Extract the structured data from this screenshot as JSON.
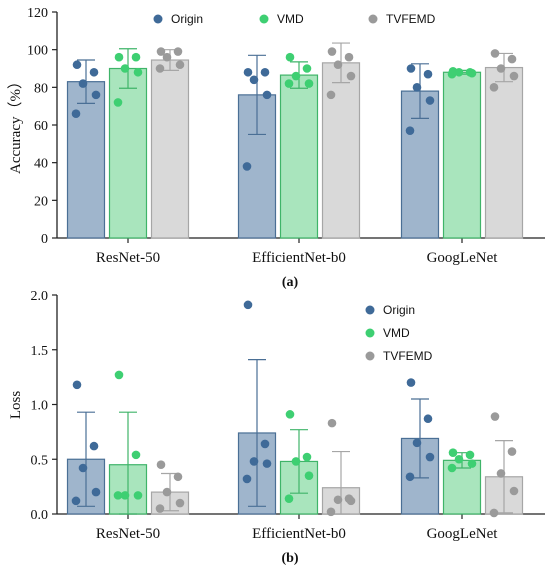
{
  "colors": {
    "Origin": {
      "fill": "#9fb5cc",
      "edge": "#4a6f95",
      "dot": "#3f6a98"
    },
    "VMD": {
      "fill": "#a9e5bd",
      "edge": "#3fb469",
      "dot": "#3ecf72"
    },
    "TVFEMD": {
      "fill": "#d9d9d9",
      "edge": "#a6a6a6",
      "dot": "#9a9a9a"
    }
  },
  "chart_data": [
    {
      "type": "bar",
      "panel_label": "(a)",
      "ylabel": "Accuracy（%）",
      "ylim": [
        0,
        120
      ],
      "yticks": [
        "0",
        "20",
        "40",
        "60",
        "80",
        "100",
        "120"
      ],
      "yticks_values": [
        0,
        20,
        40,
        60,
        80,
        100,
        120
      ],
      "categories": [
        "ResNet-50",
        "EfficientNet-b0",
        "GoogLeNet"
      ],
      "legend": {
        "placement": "top",
        "entries": [
          "Origin",
          "VMD",
          "TVFEMD"
        ]
      },
      "series": [
        {
          "name": "Origin",
          "values": [
            83,
            76,
            78
          ],
          "err": [
            11.5,
            21,
            14.5
          ],
          "points": [
            [
              92,
              88,
              82,
              76,
              66
            ],
            [
              88,
              88,
              84,
              76,
              38
            ],
            [
              90,
              87,
              80,
              73,
              57
            ]
          ]
        },
        {
          "name": "VMD",
          "values": [
            90,
            86.5,
            88
          ],
          "err": [
            10.5,
            7,
            1
          ],
          "points": [
            [
              96,
              96,
              90,
              88,
              72
            ],
            [
              96,
              90,
              86,
              82,
              82
            ],
            [
              88.5,
              88,
              88,
              87.5,
              87
            ]
          ]
        },
        {
          "name": "TVFEMD",
          "values": [
            94.5,
            93,
            90.5
          ],
          "err": [
            5.5,
            10.5,
            7.5
          ],
          "points": [
            [
              99,
              99,
              96,
              92,
              90
            ],
            [
              99,
              96,
              92,
              86,
              76
            ],
            [
              98,
              95,
              90,
              86,
              80
            ]
          ]
        }
      ]
    },
    {
      "type": "bar",
      "panel_label": "(b)",
      "ylabel": "Loss",
      "ylim": [
        0,
        2.0
      ],
      "yticks": [
        "0.0",
        "0.5",
        "1.0",
        "1.5",
        "2.0"
      ],
      "yticks_values": [
        0,
        0.5,
        1.0,
        1.5,
        2.0
      ],
      "categories": [
        "ResNet-50",
        "EfficientNet-b0",
        "GoogLeNet"
      ],
      "legend": {
        "placement": "top-right",
        "entries": [
          "Origin",
          "VMD",
          "TVFEMD"
        ]
      },
      "series": [
        {
          "name": "Origin",
          "values": [
            0.5,
            0.74,
            0.69
          ],
          "err": [
            0.43,
            0.67,
            0.36
          ],
          "points": [
            [
              1.18,
              0.62,
              0.42,
              0.2,
              0.12
            ],
            [
              1.91,
              0.64,
              0.48,
              0.46,
              0.32
            ],
            [
              1.2,
              0.87,
              0.65,
              0.52,
              0.34
            ]
          ]
        },
        {
          "name": "VMD",
          "values": [
            0.45,
            0.48,
            0.49
          ],
          "err": [
            0.48,
            0.29,
            0.07
          ],
          "points": [
            [
              1.27,
              0.54,
              0.17,
              0.17,
              0.17
            ],
            [
              0.91,
              0.52,
              0.48,
              0.35,
              0.14
            ],
            [
              0.56,
              0.54,
              0.5,
              0.46,
              0.42
            ]
          ]
        },
        {
          "name": "TVFEMD",
          "values": [
            0.2,
            0.24,
            0.34
          ],
          "err": [
            0.17,
            0.33,
            0.33
          ],
          "points": [
            [
              0.45,
              0.34,
              0.2,
              0.1,
              0.05
            ],
            [
              0.83,
              0.14,
              0.13,
              0.12,
              0.02
            ],
            [
              0.89,
              0.57,
              0.37,
              0.21,
              0.01
            ]
          ]
        }
      ]
    }
  ]
}
